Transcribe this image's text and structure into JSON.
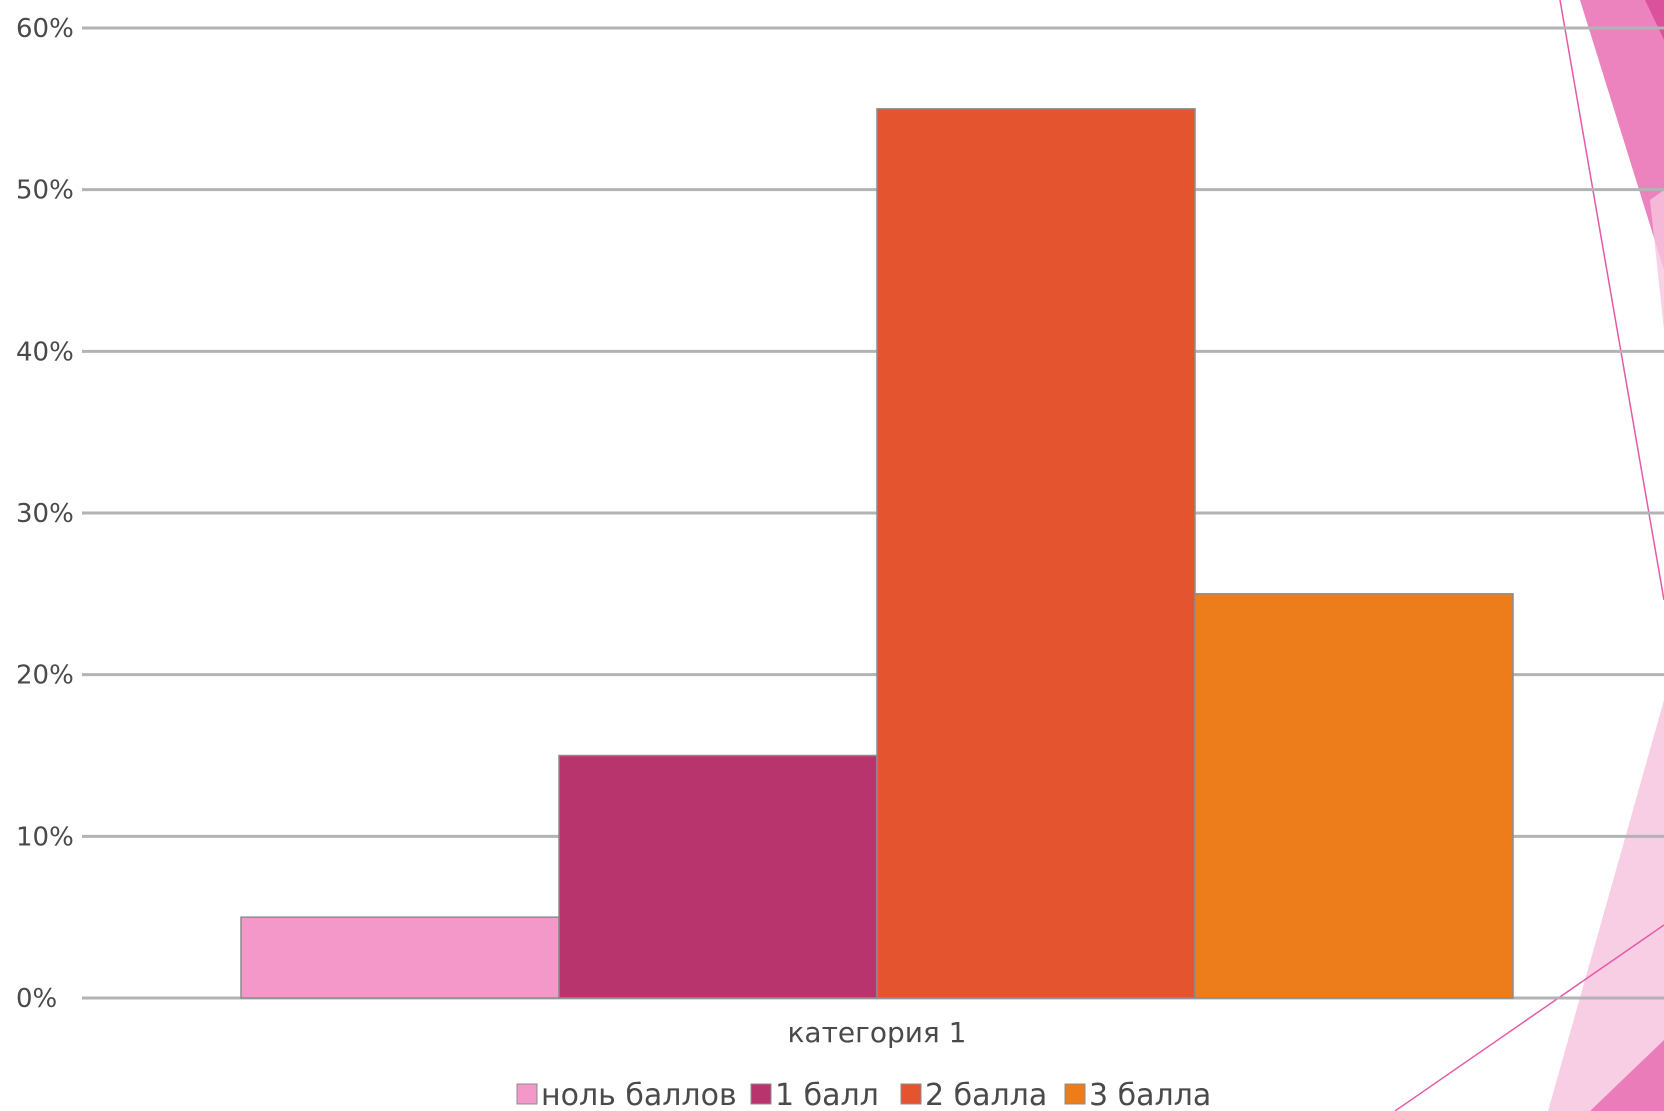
{
  "chart_data": {
    "type": "bar",
    "categories": [
      "категория 1"
    ],
    "series": [
      {
        "name": "ноль баллов",
        "values": [
          5
        ],
        "color": "#f497c9"
      },
      {
        "name": "1 балл",
        "values": [
          15
        ],
        "color": "#b8346d"
      },
      {
        "name": "2 балла",
        "values": [
          55
        ],
        "color": "#e4542f"
      },
      {
        "name": "3 балла",
        "values": [
          25
        ],
        "color": "#ed7d1b"
      }
    ],
    "y_unit": "%",
    "ylim": [
      0,
      60
    ],
    "yticks": [
      0,
      10,
      20,
      30,
      40,
      50,
      60
    ],
    "ytick_labels": [
      "0%",
      "10%",
      "20%",
      "30%",
      "40%",
      "50%",
      "60%"
    ],
    "grid": true,
    "legend_position": "bottom"
  },
  "decor": {
    "accent_pink": "#e55aa8",
    "accent_light_pink": "#f7c6e0"
  }
}
